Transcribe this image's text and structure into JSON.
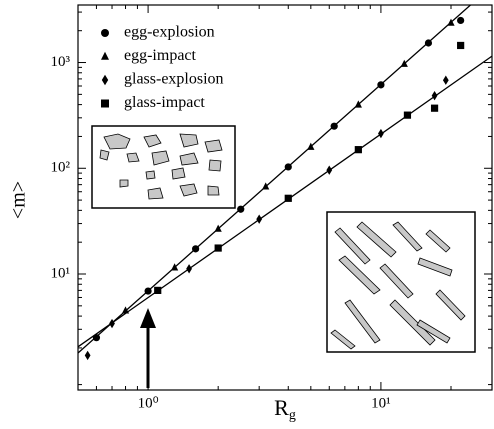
{
  "chart_data": {
    "type": "scatter",
    "xlabel": {
      "text": "R",
      "subscript": "g"
    },
    "ylabel": "<m>",
    "xscale": "log",
    "yscale": "log",
    "xlim": [
      0.5,
      30
    ],
    "ylim": [
      0.8,
      3500
    ],
    "xticks": [
      {
        "value": 1,
        "label": "10⁰"
      },
      {
        "value": 10,
        "label": "10¹"
      }
    ],
    "yticks": [
      {
        "value": 10,
        "label": "10¹"
      },
      {
        "value": 100,
        "label": "10²"
      },
      {
        "value": 1000,
        "label": "10³"
      }
    ],
    "legend": "upper left",
    "series": [
      {
        "name": "egg-explosion",
        "marker": "circle",
        "color": "#000000",
        "x": [
          0.6,
          1.0,
          1.6,
          2.5,
          4,
          6.3,
          10,
          16,
          22
        ],
        "values": [
          2.5,
          6.9,
          17.3,
          41,
          103,
          250,
          615,
          1530,
          2500
        ]
      },
      {
        "name": "egg-impact",
        "marker": "triangle",
        "color": "#000000",
        "x": [
          0.8,
          1.3,
          2,
          3.2,
          5,
          8,
          12.6,
          20
        ],
        "values": [
          4.5,
          11.5,
          26.7,
          67,
          159,
          399,
          968,
          2370
        ]
      },
      {
        "name": "glass-explosion",
        "marker": "diamond",
        "color": "#000000",
        "x": [
          0.55,
          0.7,
          1.5,
          3,
          6,
          10,
          17,
          19
        ],
        "values": [
          1.7,
          3.4,
          11.2,
          33,
          96,
          213,
          486,
          680
        ]
      },
      {
        "name": "glass-impact",
        "marker": "square",
        "color": "#000000",
        "x": [
          1.1,
          2,
          4,
          8,
          13,
          17,
          22
        ],
        "values": [
          7,
          17.6,
          52,
          150,
          318,
          370,
          1450
        ]
      }
    ],
    "fits": [
      {
        "x": [
          0.5,
          30
        ],
        "values": [
          1.79,
          5300
        ]
      },
      {
        "x": [
          0.5,
          30
        ],
        "values": [
          2.05,
          1150
        ]
      }
    ]
  }
}
